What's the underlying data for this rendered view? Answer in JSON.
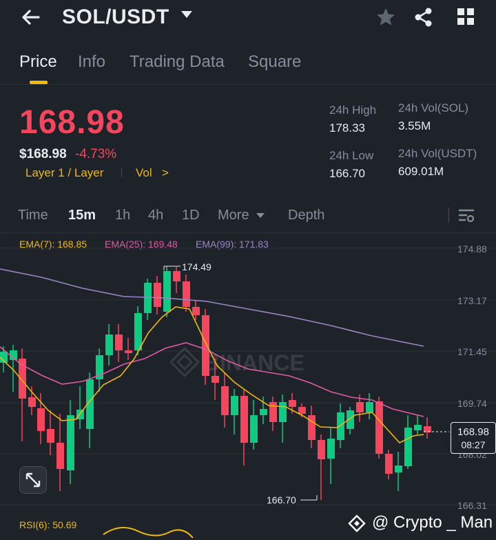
{
  "header": {
    "pair": "SOL/USDT",
    "icons": [
      "arrow-left-icon",
      "caret-down-icon",
      "star-icon",
      "share-icon",
      "grid-icon"
    ]
  },
  "tabs": [
    "Price",
    "Info",
    "Trading Data",
    "Square"
  ],
  "active_tab": "Price",
  "price": {
    "last": "168.98",
    "usd": "$168.98",
    "change": "-4.73%",
    "tag_layer": "Layer 1 / Layer",
    "tag_vol": "Vol",
    "tag_vol_arrow": ">"
  },
  "stats": {
    "high_label": "24h High",
    "high_value": "178.33",
    "low_label": "24h Low",
    "low_value": "166.70",
    "vol_sol_label": "24h Vol(SOL)",
    "vol_sol_value": "3.55M",
    "vol_usdt_label": "24h Vol(USDT)",
    "vol_usdt_value": "609.01M"
  },
  "intervals": [
    "Time",
    "15m",
    "1h",
    "4h",
    "1D",
    "More",
    "Depth"
  ],
  "active_interval": "15m",
  "indicators": {
    "ema7": "EMA(7): 168.85",
    "ema25": "EMA(25): 169.48",
    "ema99": "EMA(99): 171.83",
    "rsi": "RSI(6): 50.69"
  },
  "colors": {
    "up": "#0ecb81",
    "down": "#f6465d",
    "accent": "#f0b90b",
    "ema7": "#f0b90b",
    "ema25": "#e05ba5",
    "ema99": "#9b86c7",
    "background": "#1e2329"
  },
  "chart": {
    "y_ticks": [
      "174.88",
      "173.17",
      "171.45",
      "169.74",
      "168.02",
      "166.31"
    ],
    "max_label": "174.49",
    "min_label": "166.70",
    "last_price_label": "168.98",
    "countdown": "08:27",
    "watermark": "BINANCE"
  },
  "watermark": "@ Crypto _ Man"
}
